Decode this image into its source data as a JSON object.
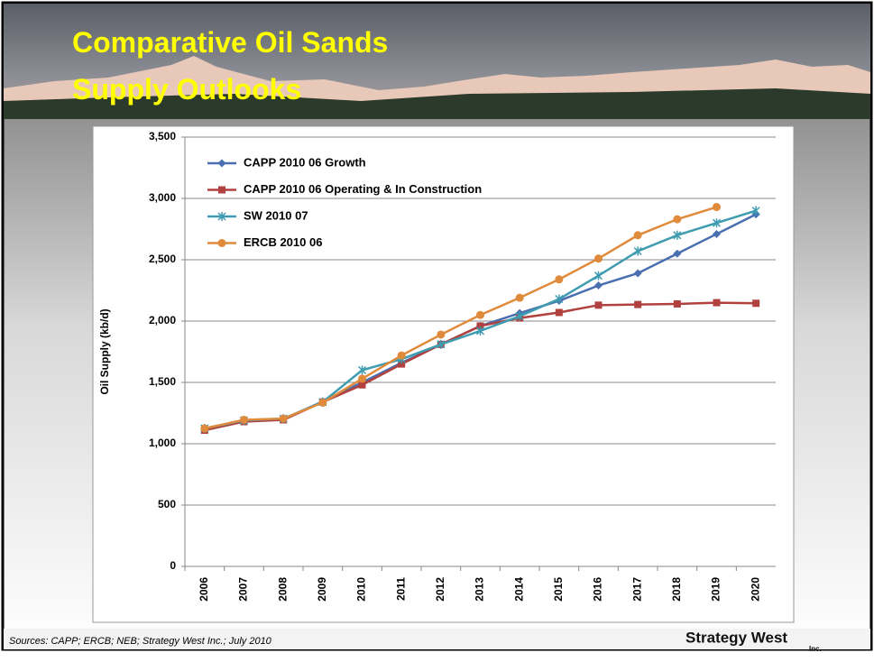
{
  "chart_data": {
    "type": "line",
    "title": "Comparative Oil Sands Supply Outlooks",
    "y_label": "Oil Supply (kb/d)",
    "categories": [
      "2006",
      "2007",
      "2008",
      "2009",
      "2010",
      "2011",
      "2012",
      "2013",
      "2014",
      "2015",
      "2016",
      "2017",
      "2018",
      "2019",
      "2020"
    ],
    "series": [
      {
        "name": "CAPP 2010 06 Growth",
        "color": "#4a6fb0",
        "marker": "diamond",
        "values": [
          1115,
          1185,
          1200,
          1345,
          1500,
          1660,
          1810,
          1960,
          2065,
          2165,
          2290,
          2390,
          2550,
          2710,
          2870
        ]
      },
      {
        "name": "CAPP 2010 06 Operating & In Construction",
        "color": "#b0413e",
        "marker": "square",
        "values": [
          1110,
          1180,
          1195,
          1340,
          1480,
          1650,
          1810,
          1960,
          2025,
          2070,
          2130,
          2135,
          2140,
          2150,
          2145
        ]
      },
      {
        "name": "SW 2010 07",
        "color": "#3f9bb0",
        "marker": "x",
        "values": [
          1125,
          1190,
          1205,
          1340,
          1600,
          1690,
          1810,
          1920,
          2040,
          2180,
          2370,
          2570,
          2700,
          2800,
          2900
        ]
      },
      {
        "name": "ERCB 2010 06",
        "color": "#e08a3c",
        "marker": "circle",
        "values": [
          1125,
          1195,
          1205,
          1335,
          1530,
          1720,
          1890,
          2050,
          2190,
          2340,
          2510,
          2700,
          2830,
          2930,
          null
        ]
      }
    ],
    "ylim": [
      0,
      3500
    ],
    "yticks": [
      0,
      500,
      {
        "value": 1000,
        "label": "1,000"
      },
      {
        "value": 1500,
        "label": "1,500"
      },
      {
        "value": 2000,
        "label": "2,000"
      },
      {
        "value": 2500,
        "label": "2,500"
      },
      {
        "value": 3000,
        "label": "3,000"
      },
      {
        "value": 3500,
        "label": "3,500"
      }
    ],
    "grid": true,
    "legend": "top-left",
    "source": "Sources: CAPP; ERCB; NEB; Strategy West Inc.; July 2010"
  },
  "logo": {
    "name": "Strategy West",
    "suffix": "Inc."
  }
}
